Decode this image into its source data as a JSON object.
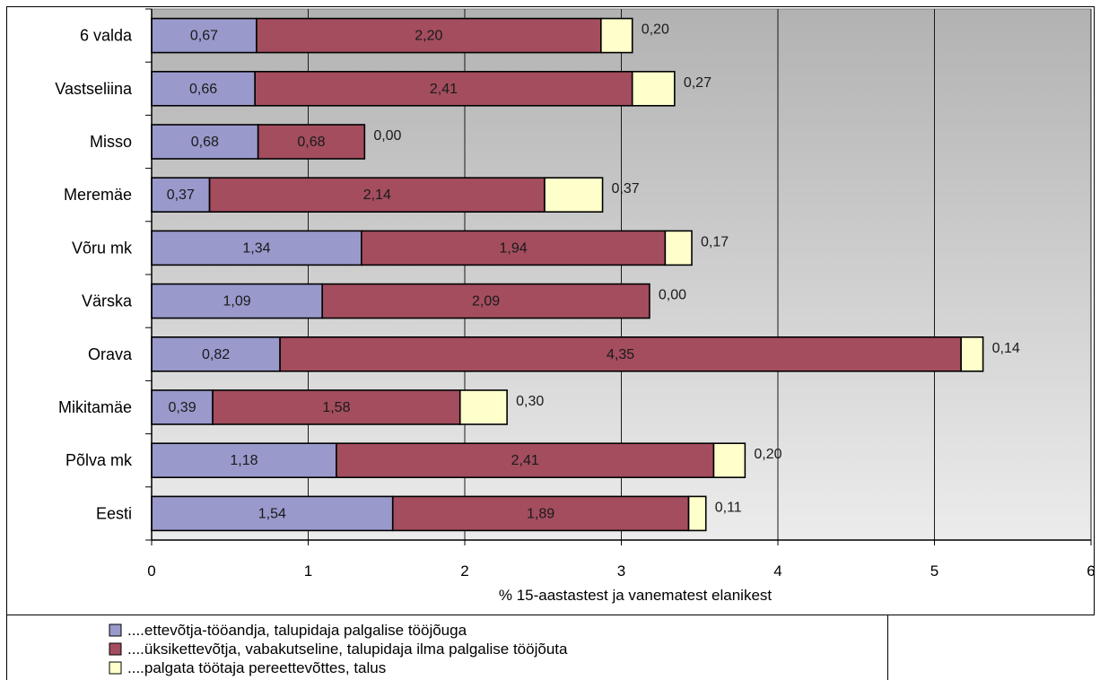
{
  "chart_data": {
    "type": "bar",
    "orientation": "horizontal",
    "stacked": true,
    "categories": [
      "6 valda",
      "Vastseliina",
      "Misso",
      "Meremäe",
      "Võru mk",
      "Värska",
      "Orava",
      "Mikitamäe",
      "Põlva mk",
      "Eesti"
    ],
    "series": [
      {
        "name": "....ettevõtja-tööandja, talupidaja palgalise tööjõuga",
        "color": "#9999cc",
        "values": [
          0.67,
          0.66,
          0.68,
          0.37,
          1.34,
          1.09,
          0.82,
          0.39,
          1.18,
          1.54
        ],
        "labels": [
          "0,67",
          "0,66",
          "0,68",
          "0,37",
          "1,34",
          "1,09",
          "0,82",
          "0,39",
          "1,18",
          "1,54"
        ]
      },
      {
        "name": "....üksikettevõtja, vabakutseline, talupidaja ilma palgalise tööjõuta",
        "color": "#a34d5e",
        "values": [
          2.2,
          2.41,
          0.68,
          2.14,
          1.94,
          2.09,
          4.35,
          1.58,
          2.41,
          1.89
        ],
        "labels": [
          "2,20",
          "2,41",
          "0,68",
          "2,14",
          "1,94",
          "2,09",
          "4,35",
          "1,58",
          "2,41",
          "1,89"
        ]
      },
      {
        "name": "....palgata töötaja pereettevõttes, talus",
        "color": "#ffffcc",
        "values": [
          0.2,
          0.27,
          0.0,
          0.37,
          0.17,
          0.0,
          0.14,
          0.3,
          0.2,
          0.11
        ],
        "labels": [
          "0,20",
          "0,27",
          "0,00",
          "0,37",
          "0,17",
          "0,00",
          "0,14",
          "0,30",
          "0,20",
          "0,11"
        ]
      }
    ],
    "xlabel": "% 15-aastastest ja vanematest elanikest",
    "xlim": [
      0,
      6
    ],
    "xticks": [
      "0",
      "1",
      "2",
      "3",
      "4",
      "5",
      "6"
    ],
    "grid": true,
    "legend_position": "bottom-left",
    "plot_background": "gradient gray",
    "bar_outline_color": "#000000"
  }
}
